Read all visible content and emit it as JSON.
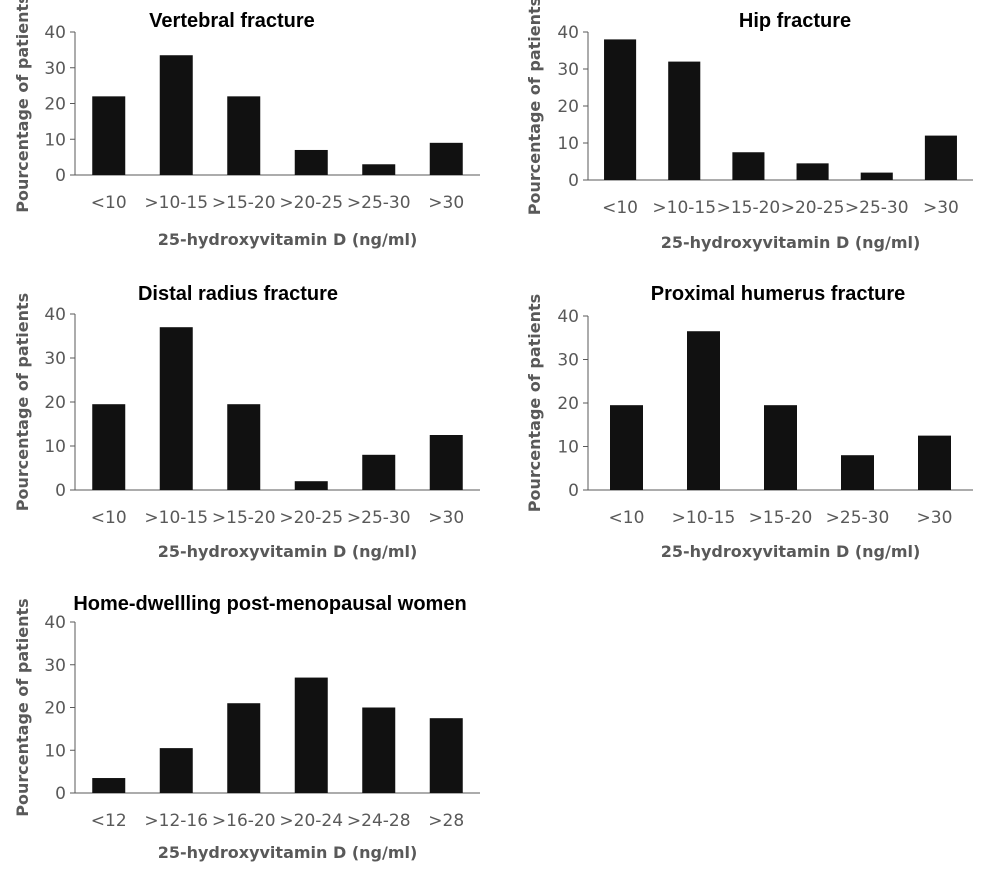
{
  "chart_data": [
    {
      "type": "bar",
      "title": "Vertebral fracture",
      "xlabel": "25-hydroxyvitamin D (ng/ml)",
      "ylabel": "Pourcentage of patients",
      "ylim": [
        0,
        40
      ],
      "yticks": [
        0,
        10,
        20,
        30,
        40
      ],
      "grid": false,
      "color": "#111111",
      "categories": [
        "<10",
        ">10-15",
        ">15-20",
        ">20-25",
        ">25-30",
        ">30"
      ],
      "values": [
        22,
        33.5,
        22,
        7,
        3,
        9
      ]
    },
    {
      "type": "bar",
      "title": "Hip fracture",
      "xlabel": "25-hydroxyvitamin D (ng/ml)",
      "ylabel": "Pourcentage of patients",
      "ylim": [
        0,
        40
      ],
      "yticks": [
        0,
        10,
        20,
        30,
        40
      ],
      "grid": false,
      "color": "#111111",
      "categories": [
        "<10",
        ">10-15",
        ">15-20",
        ">20-25",
        ">25-30",
        ">30"
      ],
      "values": [
        38,
        32,
        7.5,
        4.5,
        2,
        12
      ]
    },
    {
      "type": "bar",
      "title": "Distal radius fracture",
      "xlabel": "25-hydroxyvitamin D (ng/ml)",
      "ylabel": "Pourcentage of patients",
      "ylim": [
        0,
        40
      ],
      "yticks": [
        0,
        10,
        20,
        30,
        40
      ],
      "grid": false,
      "color": "#111111",
      "categories": [
        "<10",
        ">10-15",
        ">15-20",
        ">20-25",
        ">25-30",
        ">30"
      ],
      "values": [
        19.5,
        37,
        19.5,
        2,
        8,
        12.5
      ]
    },
    {
      "type": "bar",
      "title": "Proximal humerus fracture",
      "xlabel": "25-hydroxyvitamin D (ng/ml)",
      "ylabel": "Pourcentage of patients",
      "ylim": [
        0,
        40
      ],
      "yticks": [
        0,
        10,
        20,
        30,
        40
      ],
      "grid": false,
      "color": "#111111",
      "categories": [
        "<10",
        ">10-15",
        ">15-20",
        ">25-30",
        ">30"
      ],
      "values": [
        19.5,
        36.5,
        19.5,
        8,
        12.5
      ]
    },
    {
      "type": "bar",
      "title": "Home-dwellling post-menopausal women",
      "xlabel": "25-hydroxyvitamin D (ng/ml)",
      "ylabel": "Pourcentage of patients",
      "ylim": [
        0,
        40
      ],
      "yticks": [
        0,
        10,
        20,
        30,
        40
      ],
      "grid": false,
      "color": "#111111",
      "categories": [
        "<12",
        ">12-16",
        ">16-20",
        ">20-24",
        ">24-28",
        ">28"
      ],
      "values": [
        3.5,
        10.5,
        21,
        27,
        20,
        17.5
      ]
    }
  ]
}
